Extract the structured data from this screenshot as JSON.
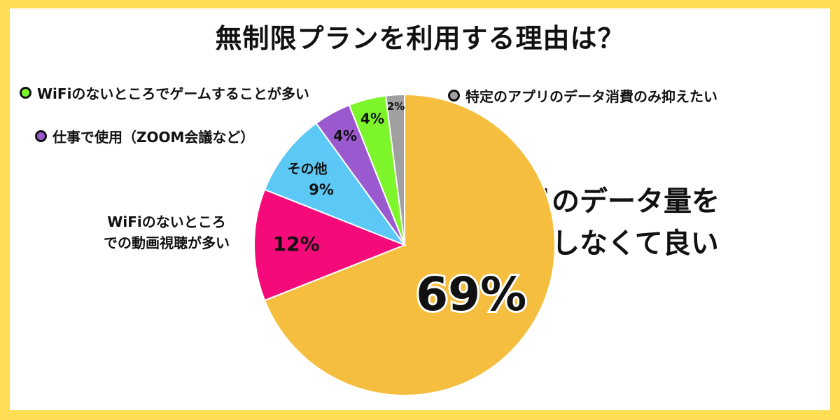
{
  "chart_data": {
    "type": "pie",
    "title": "無制限プランを利用する理由は？",
    "slices": [
      {
        "label": "毎月のデータ量を気にしなくて良い",
        "value": 69,
        "value_label": "69%",
        "color": "#F5BE3E"
      },
      {
        "label": "WiFiのないところでの動画視聴が多い",
        "value": 12,
        "value_label": "12%",
        "color": "#F50A7A"
      },
      {
        "label": "その他",
        "value": 9,
        "value_label": "9%",
        "color": "#5BC8F5"
      },
      {
        "label": "仕事で使用（ZOOM会議など）",
        "value": 4,
        "value_label": "4%",
        "color": "#9B59D0"
      },
      {
        "label": "WiFiのないところでゲームすることが多い",
        "value": 4,
        "value_label": "4%",
        "color": "#7CF52A"
      },
      {
        "label": "特定のアプリのデータ消費のみ抑えたい",
        "value": 2,
        "value_label": "2%",
        "color": "#A0A0A0"
      }
    ],
    "start_angle_deg": 0,
    "direction": "clockwise"
  },
  "legend": {
    "game": "WiFiのないところでゲームすることが多い",
    "work": "仕事で使用（ZOOM会議など）",
    "app": "特定のアプリのデータ消費のみ抑えたい"
  },
  "labels": {
    "video_line1": "WiFiのないところ",
    "video_line2": "での動画視聴が多い",
    "other_name": "その他",
    "main_line1": "毎月のデータ量を",
    "main_line2": "気にしなくて良い"
  },
  "colors": {
    "border": "#FFDD55",
    "main": "#F5BE3E",
    "video": "#F50A7A",
    "other": "#5BC8F5",
    "work": "#9B59D0",
    "game": "#7CF52A",
    "app": "#A0A0A0"
  }
}
